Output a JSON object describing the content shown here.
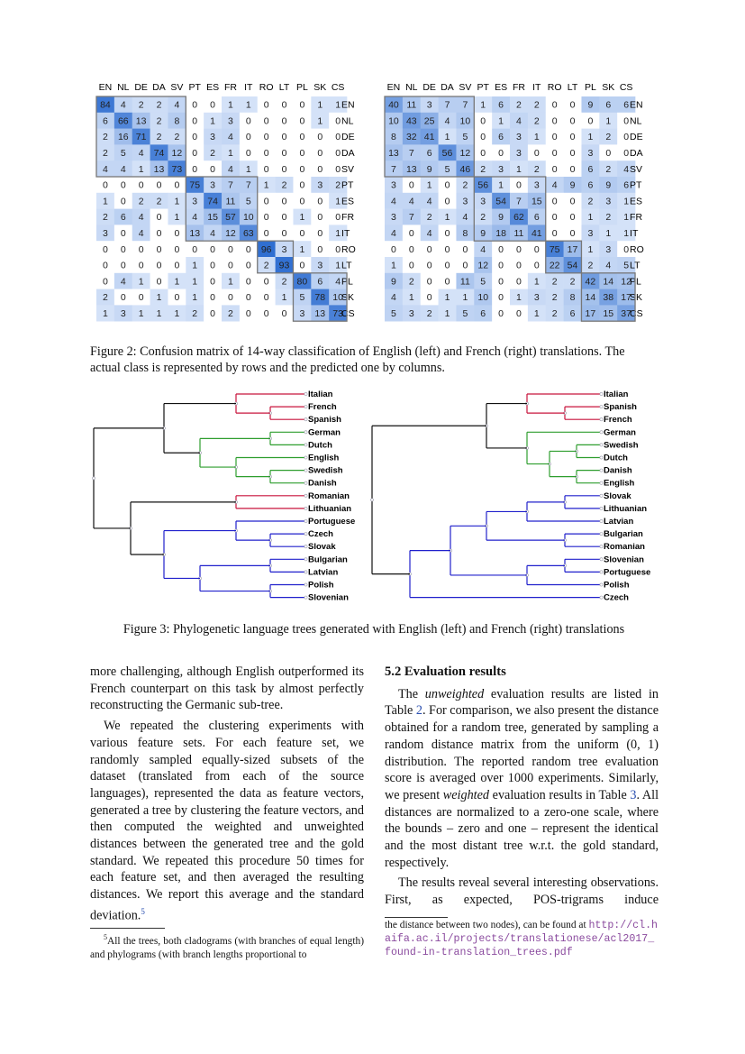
{
  "figure2": {
    "labels": [
      "EN",
      "NL",
      "DE",
      "DA",
      "SV",
      "PT",
      "ES",
      "FR",
      "IT",
      "RO",
      "LT",
      "PL",
      "SK",
      "CS"
    ],
    "left_matrix": [
      [
        84,
        4,
        2,
        2,
        4,
        0,
        0,
        1,
        1,
        0,
        0,
        0,
        1,
        1
      ],
      [
        6,
        66,
        13,
        2,
        8,
        0,
        1,
        3,
        0,
        0,
        0,
        0,
        1,
        0
      ],
      [
        2,
        16,
        71,
        2,
        2,
        0,
        3,
        4,
        0,
        0,
        0,
        0,
        0,
        0
      ],
      [
        2,
        5,
        4,
        74,
        12,
        0,
        2,
        1,
        0,
        0,
        0,
        0,
        0,
        0
      ],
      [
        4,
        4,
        1,
        13,
        73,
        0,
        0,
        4,
        1,
        0,
        0,
        0,
        0,
        0
      ],
      [
        0,
        0,
        0,
        0,
        0,
        75,
        3,
        7,
        7,
        1,
        2,
        0,
        3,
        2
      ],
      [
        1,
        0,
        2,
        2,
        1,
        3,
        74,
        11,
        5,
        0,
        0,
        0,
        0,
        1
      ],
      [
        2,
        6,
        4,
        0,
        1,
        4,
        15,
        57,
        10,
        0,
        0,
        1,
        0,
        0
      ],
      [
        3,
        0,
        4,
        0,
        0,
        13,
        4,
        12,
        63,
        0,
        0,
        0,
        0,
        1
      ],
      [
        0,
        0,
        0,
        0,
        0,
        0,
        0,
        0,
        0,
        96,
        3,
        1,
        0,
        0
      ],
      [
        0,
        0,
        0,
        0,
        0,
        1,
        0,
        0,
        0,
        2,
        93,
        0,
        3,
        1
      ],
      [
        0,
        4,
        1,
        0,
        1,
        1,
        0,
        1,
        0,
        0,
        2,
        80,
        6,
        4
      ],
      [
        2,
        0,
        0,
        1,
        0,
        1,
        0,
        0,
        0,
        0,
        1,
        5,
        78,
        10
      ],
      [
        1,
        3,
        1,
        1,
        1,
        2,
        0,
        2,
        0,
        0,
        0,
        3,
        13,
        73
      ]
    ],
    "right_matrix": [
      [
        40,
        11,
        3,
        7,
        7,
        1,
        6,
        2,
        2,
        0,
        0,
        9,
        6,
        6
      ],
      [
        10,
        43,
        25,
        4,
        10,
        0,
        1,
        4,
        2,
        0,
        0,
        0,
        1,
        0
      ],
      [
        8,
        32,
        41,
        1,
        5,
        0,
        6,
        3,
        1,
        0,
        0,
        1,
        2,
        0
      ],
      [
        13,
        7,
        6,
        56,
        12,
        0,
        0,
        3,
        0,
        0,
        0,
        3,
        0,
        0
      ],
      [
        7,
        13,
        9,
        5,
        46,
        2,
        3,
        1,
        2,
        0,
        0,
        6,
        2,
        4
      ],
      [
        3,
        0,
        1,
        0,
        2,
        56,
        1,
        0,
        3,
        4,
        9,
        6,
        9,
        6
      ],
      [
        4,
        4,
        4,
        0,
        3,
        3,
        54,
        7,
        15,
        0,
        0,
        2,
        3,
        1
      ],
      [
        3,
        7,
        2,
        1,
        4,
        2,
        9,
        62,
        6,
        0,
        0,
        1,
        2,
        1
      ],
      [
        4,
        0,
        4,
        0,
        8,
        9,
        18,
        11,
        41,
        0,
        0,
        3,
        1,
        1
      ],
      [
        0,
        0,
        0,
        0,
        0,
        4,
        0,
        0,
        0,
        75,
        17,
        1,
        3,
        0
      ],
      [
        1,
        0,
        0,
        0,
        0,
        12,
        0,
        0,
        0,
        22,
        54,
        2,
        4,
        5
      ],
      [
        9,
        2,
        0,
        0,
        11,
        5,
        0,
        0,
        1,
        2,
        2,
        42,
        14,
        12
      ],
      [
        4,
        1,
        0,
        1,
        1,
        10,
        0,
        1,
        3,
        2,
        8,
        14,
        38,
        17
      ],
      [
        5,
        3,
        2,
        1,
        5,
        6,
        0,
        0,
        1,
        2,
        6,
        17,
        15,
        37
      ]
    ],
    "caption": "Figure 2: Confusion matrix of 14-way classification of English (left) and French (right) translations. The actual class is represented by rows and the predicted one by columns."
  },
  "figure3": {
    "left_leaves": [
      "Italian",
      "French",
      "Spanish",
      "German",
      "Dutch",
      "English",
      "Swedish",
      "Danish",
      "Romanian",
      "Lithuanian",
      "Portuguese",
      "Czech",
      "Slovak",
      "Bulgarian",
      "Latvian",
      "Polish",
      "Slovenian"
    ],
    "right_leaves": [
      "Italian",
      "Spanish",
      "French",
      "German",
      "Swedish",
      "Dutch",
      "Danish",
      "English",
      "Slovak",
      "Lithuanian",
      "Latvian",
      "Bulgarian",
      "Romanian",
      "Slovenian",
      "Portuguese",
      "Polish",
      "Czech"
    ],
    "caption": "Figure 3: Phylogenetic language trees generated with English (left) and French (right) translations"
  },
  "body": {
    "left_paragraphs": [
      "more challenging, although English outperformed its French counterpart on this task by almost perfectly reconstructing the Germanic sub-tree.",
      "We repeated the clustering experiments with various feature sets. For each feature set, we randomly sampled equally-sized subsets of the dataset (translated from each of the source languages), represented the data as feature vectors, generated a tree by clustering the feature vectors, and then computed the weighted and unweighted distances between the generated tree and the gold standard. We repeated this procedure 50 times for each feature set, and then averaged the resulting distances. We report this average and the standard deviation."
    ],
    "footnote_mark": "5",
    "section_heading": "5.2 Evaluation results",
    "right_paragraph_1": [
      "The ",
      "unweighted",
      " evaluation results are listed in Table ",
      "2",
      ". For comparison, we also present the distance obtained for a random tree, generated by sampling a random distance matrix from the uniform (0, 1) distribution. The reported random tree evaluation score is averaged over 1000 experiments. Similarly, we present ",
      "weighted",
      " evaluation results in Table ",
      "3",
      ". All distances are normalized to a zero-one scale, where the bounds – zero and one – represent the identical and the most distant tree w.r.t. the gold standard, respectively."
    ],
    "right_paragraph_2": "The results reveal several interesting observations. First, as expected, POS-trigrams induce",
    "footnote_left": "All the trees, both cladograms (with branches of equal length) and phylograms (with branch lengths proportional to",
    "footnote_right": "the distance between two nodes), can be found at ",
    "footnote_url": "http://cl.haifa.ac.il/projects/translationese/acl2017_found-in-translation_trees.pdf"
  }
}
